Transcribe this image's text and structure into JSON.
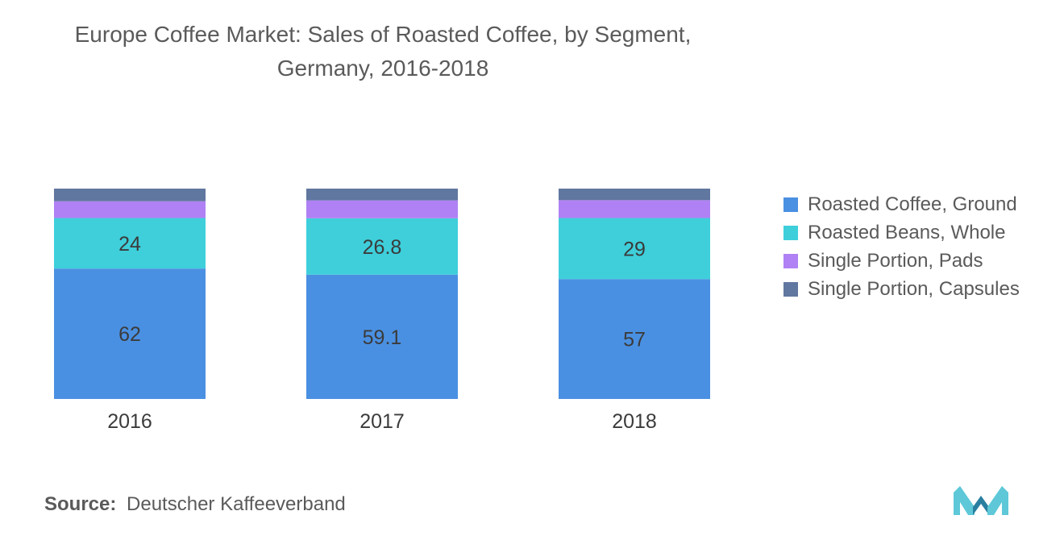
{
  "chart_data": {
    "type": "bar",
    "stacked": true,
    "title_lines": [
      "Europe Coffee Market: Sales of Roasted Coffee, by Segment,",
      "Germany, 2016-2018"
    ],
    "categories": [
      "2016",
      "2017",
      "2018"
    ],
    "series": [
      {
        "name": "Roasted Coffee, Ground",
        "values": [
          62,
          59.1,
          57
        ],
        "labels": [
          "62",
          "59.1",
          "57"
        ],
        "color": "#4a90e2"
      },
      {
        "name": "Roasted Beans, Whole",
        "values": [
          24,
          26.8,
          29
        ],
        "labels": [
          "24",
          "26.8",
          "29"
        ],
        "color": "#3ecfdb"
      },
      {
        "name": "Single Portion, Pads",
        "values": [
          8,
          8.5,
          8.5
        ],
        "labels": null,
        "color": "#b081f4"
      },
      {
        "name": "Single Portion, Capsules",
        "values": [
          6,
          5.6,
          5.5
        ],
        "labels": null,
        "color": "#60779f"
      }
    ],
    "ylim": [
      0,
      100
    ],
    "grid": false,
    "legend_position": "right"
  },
  "source": {
    "label": "Source:",
    "text": "Deutscher Kaffeeverband"
  },
  "colors": {
    "text": "#5a5a5a",
    "bar_label": "#3b3b3b",
    "logo_light": "#5ec8d8",
    "logo_dark": "#2a7fa0"
  }
}
